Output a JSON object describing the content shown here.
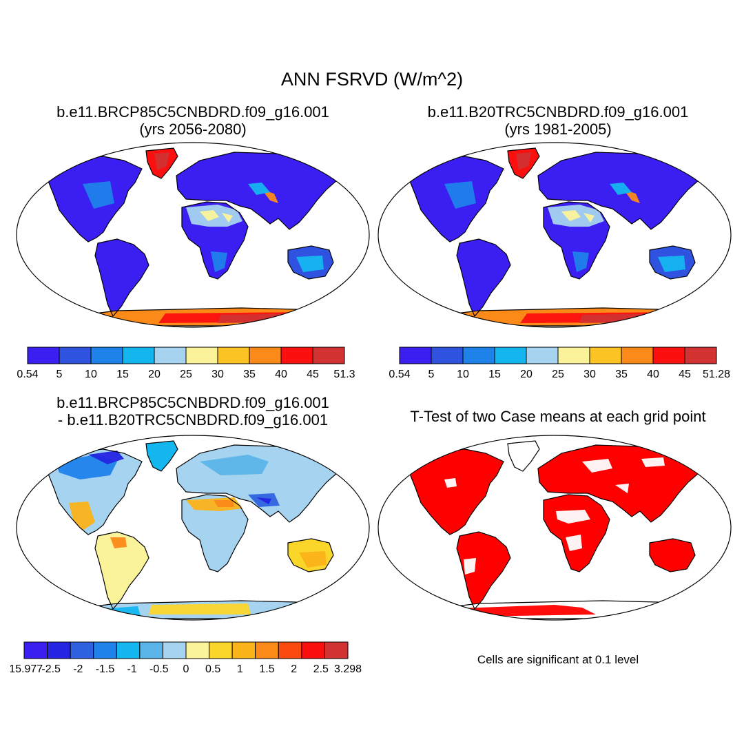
{
  "title": "ANN FSRVD (W/m^2)",
  "colors": {
    "seq10": [
      "#3b1ef2",
      "#2f52e0",
      "#1f82ea",
      "#14b6f0",
      "#a6d4f0",
      "#fbf39a",
      "#fbc323",
      "#fb8a18",
      "#fb0f0f",
      "#d23232"
    ],
    "diff14": [
      "#3b1ef2",
      "#2424e2",
      "#2f62e0",
      "#1f82ea",
      "#14b6f0",
      "#5ab4e8",
      "#a6d4f0",
      "#fbf39a",
      "#fbd62a",
      "#fbb31a",
      "#fb8a18",
      "#fb4a10",
      "#fb0f0f",
      "#d23232"
    ],
    "sig": "#ff0000",
    "ocean": "#ffffff"
  },
  "panels": [
    {
      "id": "p1",
      "title_lines": [
        "b.e11.BRCP85C5CNBDRD.f09_g16.001",
        "(yrs 2056-2080)"
      ],
      "colorbar_labels": [
        "0.54",
        "5",
        "10",
        "15",
        "20",
        "25",
        "30",
        "35",
        "40",
        "45",
        "51.3"
      ]
    },
    {
      "id": "p2",
      "title_lines": [
        "b.e11.B20TRC5CNBDRD.f09_g16.001",
        "(yrs 1981-2005)"
      ],
      "colorbar_labels": [
        "0.54",
        "5",
        "10",
        "15",
        "20",
        "25",
        "30",
        "35",
        "40",
        "45",
        "51.28"
      ]
    },
    {
      "id": "p3",
      "title_lines": [
        "b.e11.BRCP85C5CNBDRD.f09_g16.001",
        "- b.e11.B20TRC5CNBDRD.f09_g16.001"
      ],
      "colorbar_labels": [
        "-15.977",
        "-2.5",
        "-2",
        "-1.5",
        "-1",
        "-0.5",
        "0",
        "0.5",
        "1",
        "1.5",
        "2",
        "2.5",
        "3.298"
      ]
    },
    {
      "id": "p4",
      "title_lines": [
        "T-Test of two Case means at each grid point"
      ],
      "note": "Cells are significant at 0.1 level"
    }
  ]
}
